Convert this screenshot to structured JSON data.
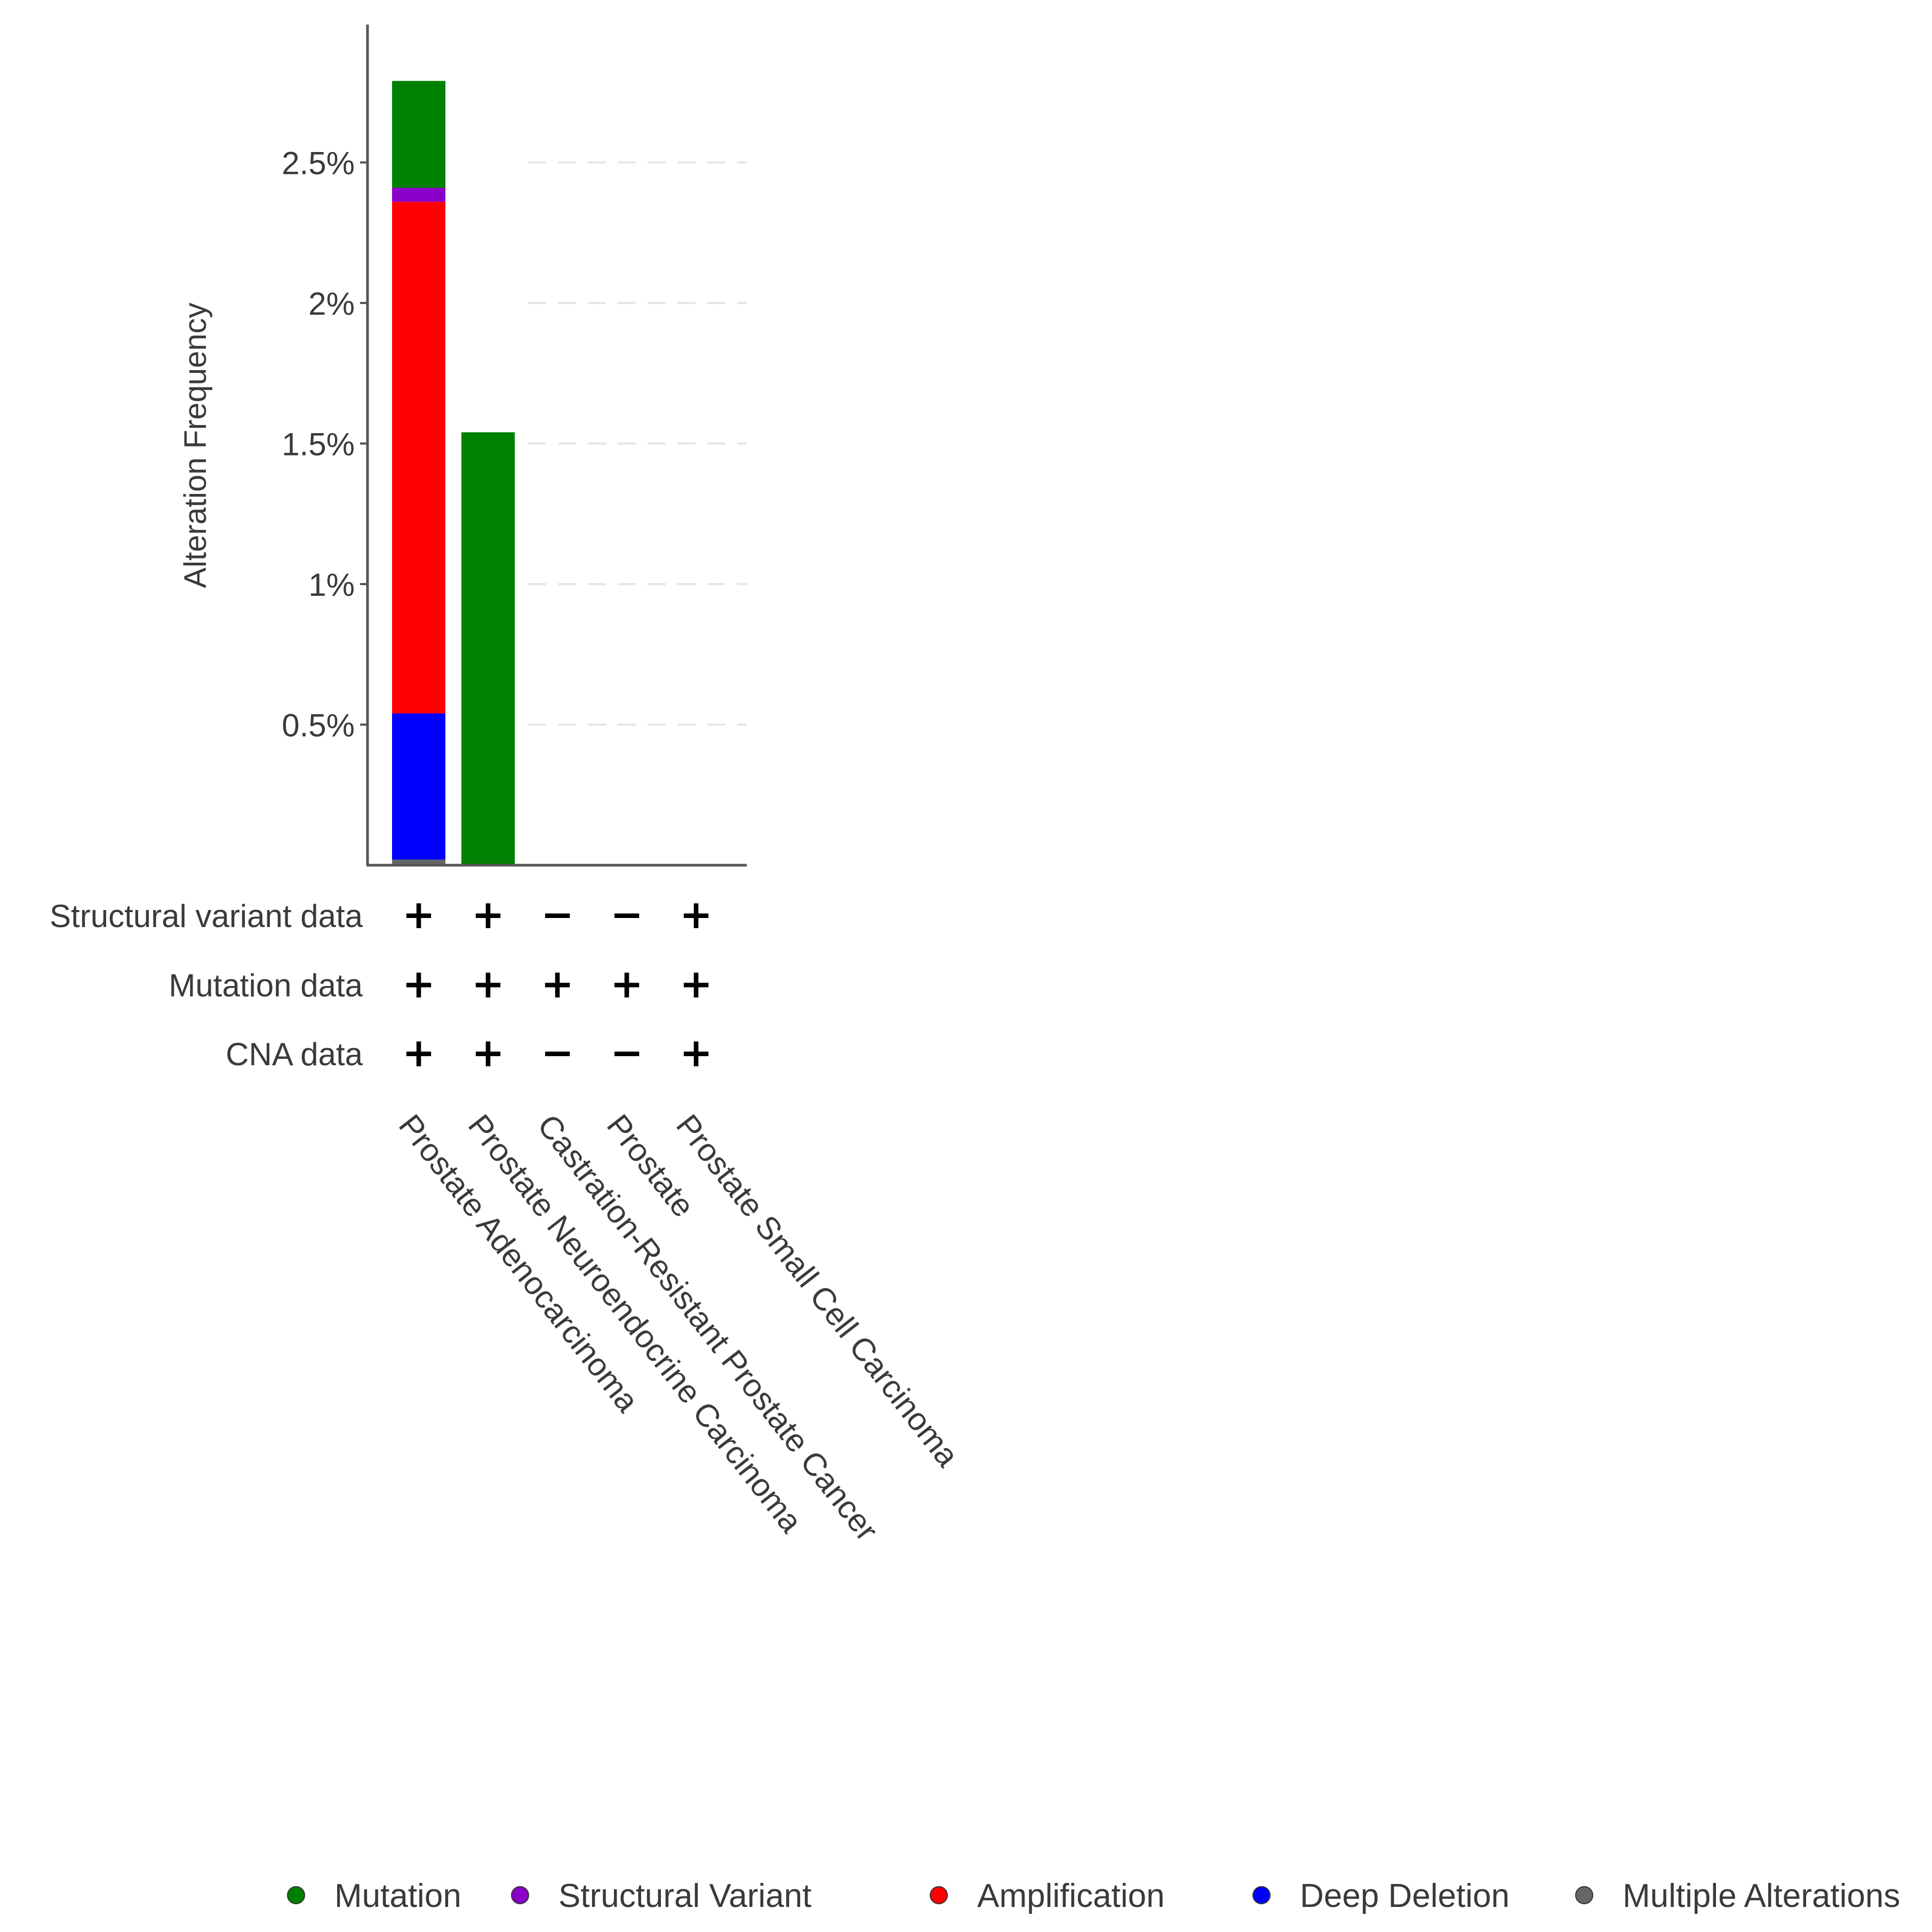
{
  "chart_data": {
    "type": "bar",
    "stacked": true,
    "ylabel": "Alteration Frequency",
    "y_unit": "%",
    "ylim": [
      0,
      2.95
    ],
    "yticks": [
      0.5,
      1,
      1.5,
      2,
      2.5
    ],
    "ytick_labels": [
      "0.5%",
      "1%",
      "1.5%",
      "2%",
      "2.5%"
    ],
    "grid": "horizontal dashed",
    "categories": [
      "Prostate Adenocarcinoma",
      "Prostate Neuroendocrine Carcinoma",
      "Castration-Resistant Prostate Cancer",
      "Prostate",
      "Prostate Small Cell Carcinoma"
    ],
    "series": [
      {
        "name": "Multiple Alterations",
        "color": "#666666",
        "values": [
          0.02,
          0,
          0,
          0,
          0
        ]
      },
      {
        "name": "Deep Deletion",
        "color": "#0000FF",
        "values": [
          0.52,
          0,
          0,
          0,
          0
        ]
      },
      {
        "name": "Amplification",
        "color": "#FF0000",
        "values": [
          1.82,
          0,
          0,
          0,
          0
        ]
      },
      {
        "name": "Structural Variant",
        "color": "#8B00C9",
        "values": [
          0.05,
          0,
          0,
          0,
          0
        ]
      },
      {
        "name": "Mutation",
        "color": "#008000",
        "values": [
          0.38,
          1.54,
          0,
          0,
          0
        ]
      }
    ],
    "data_availability": {
      "rows": [
        {
          "label": "Structural variant data",
          "values": [
            "+",
            "+",
            "−",
            "−",
            "+"
          ]
        },
        {
          "label": "Mutation data",
          "values": [
            "+",
            "+",
            "+",
            "+",
            "+"
          ]
        },
        {
          "label": "CNA data",
          "values": [
            "+",
            "+",
            "−",
            "−",
            "+"
          ]
        }
      ]
    },
    "legend": {
      "placement": "bottom",
      "items": [
        {
          "label": "Mutation",
          "color": "#008000"
        },
        {
          "label": "Structural Variant",
          "color": "#8B00C9"
        },
        {
          "label": "Amplification",
          "color": "#FF0000"
        },
        {
          "label": "Deep Deletion",
          "color": "#0000FF"
        },
        {
          "label": "Multiple Alterations",
          "color": "#666666"
        }
      ]
    }
  }
}
